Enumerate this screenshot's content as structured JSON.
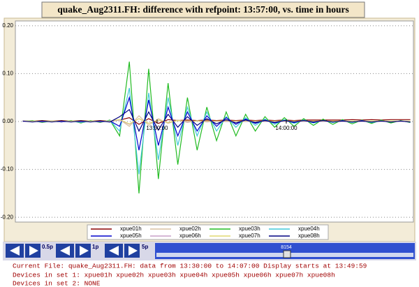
{
  "chart_data": {
    "type": "line",
    "title": "quake_Aug2311.FH: difference with refpoint: 13:57:00, vs. time in hours",
    "x": [
      13.66,
      13.6725,
      13.685,
      13.6975,
      13.71,
      13.7225,
      13.735,
      13.7475,
      13.76,
      13.7725,
      13.785,
      13.7975,
      13.81,
      13.8225,
      13.835,
      13.8475,
      13.86,
      13.8725,
      13.885,
      13.8975,
      13.91,
      13.9225,
      13.935,
      13.9475,
      13.96,
      13.9725,
      13.985,
      13.9975,
      14.01,
      14.0225,
      14.035,
      14.0475,
      14.06,
      14.0725,
      14.085,
      14.0975,
      14.11,
      14.1225,
      14.135,
      14.1475,
      14.16
    ],
    "xlim": [
      13.6505,
      14.164
    ],
    "xticks": [
      {
        "value": 13.8333,
        "label": "13:50:00"
      },
      {
        "value": 14.0,
        "label": "14:00:00"
      }
    ],
    "ylim": [
      -0.21,
      0.21
    ],
    "yticks": [
      {
        "value": -0.2,
        "label": "-0.20"
      },
      {
        "value": -0.1,
        "label": "-0.10"
      },
      {
        "value": 0,
        "label": "0.00"
      },
      {
        "value": 0.1,
        "label": "0.10"
      },
      {
        "value": 0.2,
        "label": "0.20"
      }
    ],
    "grid": true,
    "series": [
      {
        "name": "xpue01h",
        "color": "#8b0000",
        "values": [
          0.001,
          0.001,
          0.002,
          0.001,
          0.002,
          0.001,
          0.002,
          0.001,
          0.002,
          0.001,
          0.003,
          0.008,
          -0.006,
          0.006,
          -0.004,
          0.004,
          0.002,
          0.003,
          0.002,
          0.003,
          0.002,
          0.003,
          0.002,
          0.003,
          0.002,
          0.003,
          0.002,
          0.003,
          0.002,
          0.003,
          0.003,
          0.003,
          0.003,
          0.003,
          0.004,
          0.003,
          0.004,
          0.003,
          0.004,
          0.004,
          0.004
        ]
      },
      {
        "name": "xpue02h",
        "color": "#d8c0a0",
        "values": [
          0,
          0.001,
          0,
          0.001,
          0,
          0.001,
          0,
          0.001,
          0,
          0.001,
          0.004,
          -0.01,
          0.012,
          -0.008,
          0.006,
          -0.004,
          0.003,
          -0.002,
          0.002,
          -0.001,
          0.001,
          0,
          0.001,
          0,
          0.001,
          0,
          0.001,
          0,
          0.001,
          0,
          0.001,
          0,
          0.001,
          0,
          0.001,
          0,
          0.001,
          0,
          0.001,
          0,
          0.001
        ]
      },
      {
        "name": "xpue03h",
        "color": "#22bb22",
        "values": [
          0,
          0.002,
          -0.002,
          0.001,
          -0.001,
          0.002,
          -0.003,
          0.002,
          -0.002,
          0.003,
          -0.03,
          0.125,
          -0.15,
          0.11,
          -0.12,
          0.08,
          -0.09,
          0.05,
          -0.06,
          0.03,
          -0.04,
          0.02,
          -0.03,
          0.015,
          -0.02,
          0.01,
          -0.012,
          0.008,
          -0.01,
          0.006,
          -0.008,
          0.005,
          -0.006,
          0.004,
          -0.005,
          0.003,
          -0.004,
          0.003,
          -0.003,
          0.002,
          -0.002
        ]
      },
      {
        "name": "xpue04h",
        "color": "#40c8d8",
        "values": [
          0,
          0.001,
          -0.001,
          0.001,
          -0.001,
          0.001,
          -0.002,
          0.001,
          -0.001,
          0.002,
          -0.02,
          0.07,
          -0.11,
          0.06,
          -0.08,
          0.05,
          -0.05,
          0.03,
          -0.03,
          0.02,
          -0.02,
          0.01,
          -0.012,
          0.008,
          -0.008,
          0.005,
          -0.006,
          0.004,
          -0.004,
          0.003,
          -0.003,
          0.002,
          -0.002,
          0.002,
          -0.002,
          0.002,
          -0.002,
          0.001,
          -0.001,
          0.001,
          -0.001
        ]
      },
      {
        "name": "xpue05h",
        "color": "#0000cc",
        "values": [
          0,
          0.001,
          -0.001,
          0.001,
          -0.001,
          0.001,
          -0.001,
          0.001,
          -0.001,
          0.001,
          -0.01,
          0.05,
          -0.06,
          0.045,
          -0.05,
          0.03,
          -0.03,
          0.02,
          -0.02,
          0.012,
          -0.01,
          0.008,
          -0.006,
          0.005,
          -0.004,
          0.003,
          -0.003,
          0.002,
          -0.002,
          0.002,
          -0.002,
          0.002,
          -0.001,
          0.002,
          -0.001,
          0.002,
          -0.001,
          0.001,
          -0.001,
          0.001,
          -0.001
        ]
      },
      {
        "name": "xpue06h",
        "color": "#c8a0c8",
        "values": [
          0,
          0,
          0,
          0,
          0,
          0,
          0,
          0,
          0,
          0,
          0.003,
          -0.006,
          0.006,
          -0.004,
          0.003,
          -0.002,
          0.002,
          -0.001,
          0.001,
          0,
          0,
          0,
          0,
          0,
          0,
          0,
          0,
          0,
          0,
          0,
          0,
          0,
          0,
          0,
          0,
          0,
          0,
          0,
          0,
          0,
          0
        ]
      },
      {
        "name": "xpue07h",
        "color": "#e0d870",
        "values": [
          0.001,
          0.001,
          0.001,
          0.001,
          0.001,
          0.001,
          0.001,
          0.001,
          0.001,
          0.001,
          0.004,
          -0.005,
          0.006,
          -0.004,
          0.003,
          -0.002,
          0.002,
          0.001,
          0.001,
          0.001,
          0.001,
          0.001,
          0.001,
          0.001,
          0.001,
          0.001,
          0.001,
          0.001,
          0.001,
          0.001,
          0.001,
          0.001,
          0.001,
          0.001,
          0.001,
          0.001,
          0.001,
          0.001,
          0.001,
          0.001,
          0.001
        ]
      },
      {
        "name": "xpue08h",
        "color": "#000080",
        "values": [
          0.001,
          -0.001,
          0.001,
          -0.001,
          0.001,
          -0.001,
          0.001,
          -0.001,
          0.001,
          -0.001,
          0.01,
          0.025,
          -0.02,
          0.02,
          -0.018,
          0.015,
          -0.012,
          0.01,
          -0.008,
          0.006,
          -0.005,
          0.004,
          -0.003,
          0.003,
          -0.002,
          0.002,
          -0.002,
          0.002,
          -0.001,
          0.002,
          -0.001,
          0.002,
          -0.001,
          0.001,
          -0.001,
          0.001,
          -0.001,
          0.001,
          -0.001,
          0.001,
          -0.001
        ]
      }
    ]
  },
  "controls": {
    "step_labels": [
      "0.5p",
      "1p",
      "5p"
    ],
    "slider_value": 8154
  },
  "status_lines": [
    "Current File: quake_Aug2311.FH: data from 13:30:00 to 14:07:00 Display starts at 13:49:59",
    "Devices in set 1: xpue01h xpue02h xpue03h xpue04h xpue05h xpue06h xpue07h xpue08h",
    "Devices in set 2: NONE"
  ]
}
